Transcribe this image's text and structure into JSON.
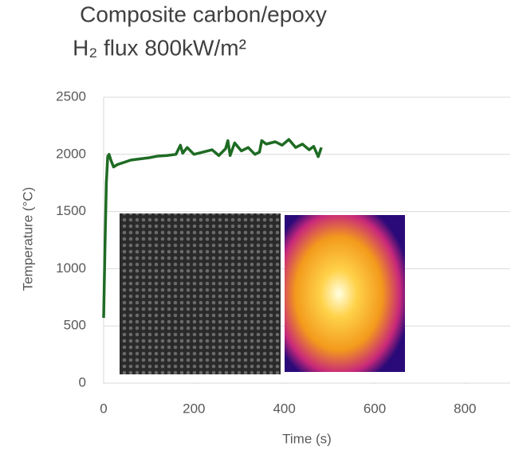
{
  "chart_data": {
    "type": "line",
    "title": [
      "Composite carbon/epoxy",
      "H₂ flux 800kW/m²"
    ],
    "x_label": "Time (s)",
    "y_label": "Temperature (°C)",
    "x": [
      0,
      3,
      6,
      9,
      12,
      16,
      22,
      30,
      45,
      60,
      80,
      100,
      120,
      140,
      160,
      170,
      175,
      185,
      200,
      220,
      240,
      255,
      270,
      275,
      280,
      290,
      305,
      320,
      335,
      345,
      350,
      360,
      380,
      395,
      410,
      425,
      440,
      455,
      465,
      475,
      482
    ],
    "series": [
      {
        "color": "#1e6b23",
        "values": [
          570,
          1200,
          1750,
          1980,
          2000,
          1950,
          1890,
          1910,
          1930,
          1950,
          1960,
          1970,
          1985,
          1990,
          2000,
          2080,
          2010,
          2060,
          2000,
          2020,
          2040,
          1990,
          2050,
          2120,
          1990,
          2100,
          2030,
          2060,
          2000,
          2020,
          2120,
          2090,
          2110,
          2080,
          2130,
          2060,
          2090,
          2040,
          2070,
          1980,
          2060
        ]
      }
    ],
    "xlim": [
      0,
      900
    ],
    "xticks": [
      0,
      200,
      400,
      600,
      800
    ],
    "ylim": [
      0,
      2500
    ],
    "yticks": [
      0,
      500,
      1000,
      1500,
      2000,
      2500
    ],
    "grid": true
  }
}
